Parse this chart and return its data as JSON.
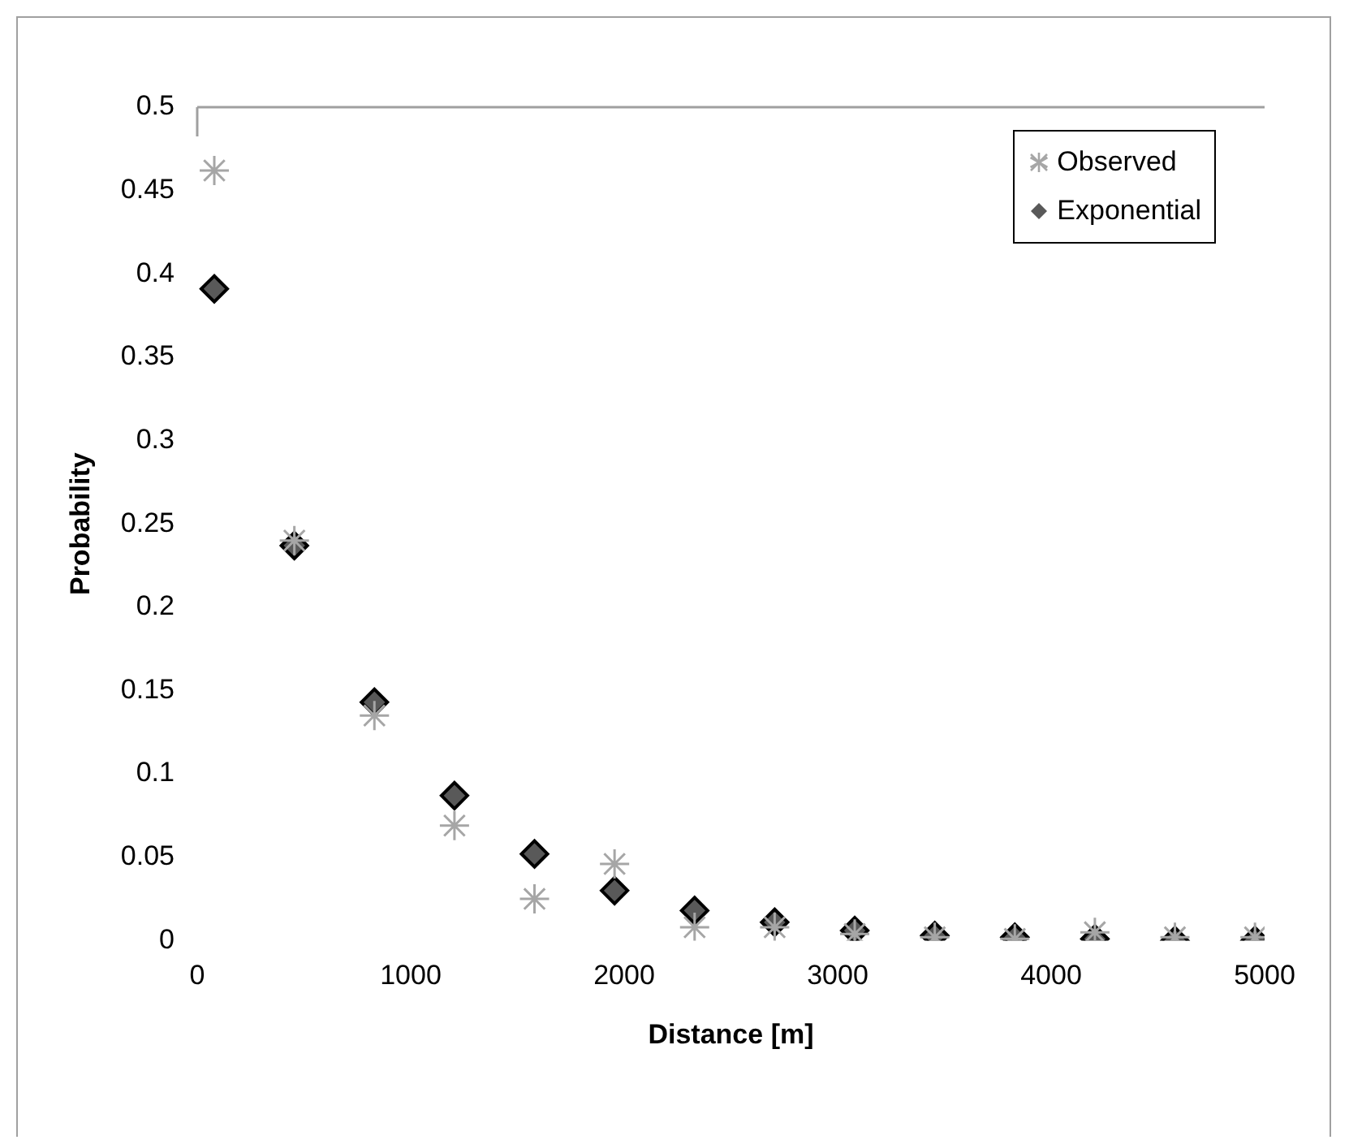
{
  "chart_data": {
    "type": "scatter",
    "xlabel": "Distance [m]",
    "ylabel": "Probability",
    "xlim": [
      0,
      5000
    ],
    "xticks": [
      0,
      1000,
      2000,
      3000,
      4000,
      5000
    ],
    "ylim": [
      0,
      0.5
    ],
    "yticks": [
      0,
      0.05,
      0.1,
      0.15,
      0.2,
      0.25,
      0.3,
      0.35,
      0.4,
      0.45,
      0.5
    ],
    "grid": false,
    "legend": "top right",
    "series": [
      {
        "name": "Observed",
        "marker": "cross",
        "color": "#a6a6a6",
        "x": [
          80,
          455,
          830,
          1205,
          1580,
          1955,
          2330,
          2705,
          3080,
          3455,
          3830,
          4205,
          4580,
          4955
        ],
        "values": [
          0.462,
          0.24,
          0.135,
          0.069,
          0.025,
          0.046,
          0.008,
          0.008,
          0.004,
          0.002,
          0.001,
          0.005,
          0.002,
          0.002
        ]
      },
      {
        "name": "Exponential",
        "marker": "diamond",
        "color": "#595959",
        "x": [
          80,
          455,
          830,
          1205,
          1580,
          1955,
          2330,
          2705,
          3080,
          3455,
          3830,
          4205,
          4580,
          4955
        ],
        "values": [
          0.391,
          0.237,
          0.143,
          0.087,
          0.052,
          0.03,
          0.018,
          0.011,
          0.006,
          0.003,
          0.002,
          0.001,
          0,
          0
        ]
      }
    ]
  }
}
